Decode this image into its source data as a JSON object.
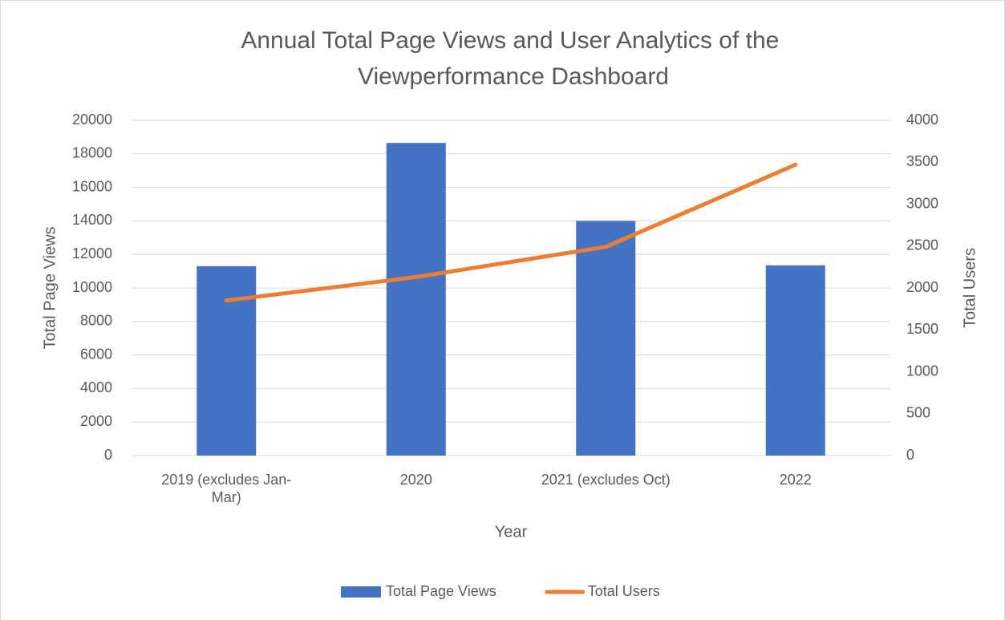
{
  "chart_data": {
    "type": "combo",
    "title": "Annual Total Page Views and User Analytics of the Viewperformance Dashboard",
    "x_label": "Year",
    "y_label": "Total Page Views",
    "y2_label": "Total Users",
    "categories": [
      "2019 (excludes Jan-Mar)",
      "2020",
      "2021 (excludes Oct)",
      "2022"
    ],
    "series": [
      {
        "name": "Total Page Views",
        "type": "bar",
        "color": "#4472c4",
        "values": [
          11300,
          18650,
          14000,
          11350
        ]
      },
      {
        "name": "Total Users",
        "type": "line",
        "axis": "y2",
        "color": "#ed7d31",
        "values": [
          1850,
          2130,
          2490,
          3470
        ]
      }
    ],
    "ylim": [
      0,
      20000
    ],
    "yticks": [
      0,
      2000,
      4000,
      6000,
      8000,
      10000,
      12000,
      14000,
      16000,
      18000,
      20000
    ],
    "y2lim": [
      0,
      4000
    ],
    "y2ticks": [
      0,
      500,
      1000,
      1500,
      2000,
      2500,
      3000,
      3500,
      4000
    ],
    "grid": true,
    "legend": "bottom"
  }
}
